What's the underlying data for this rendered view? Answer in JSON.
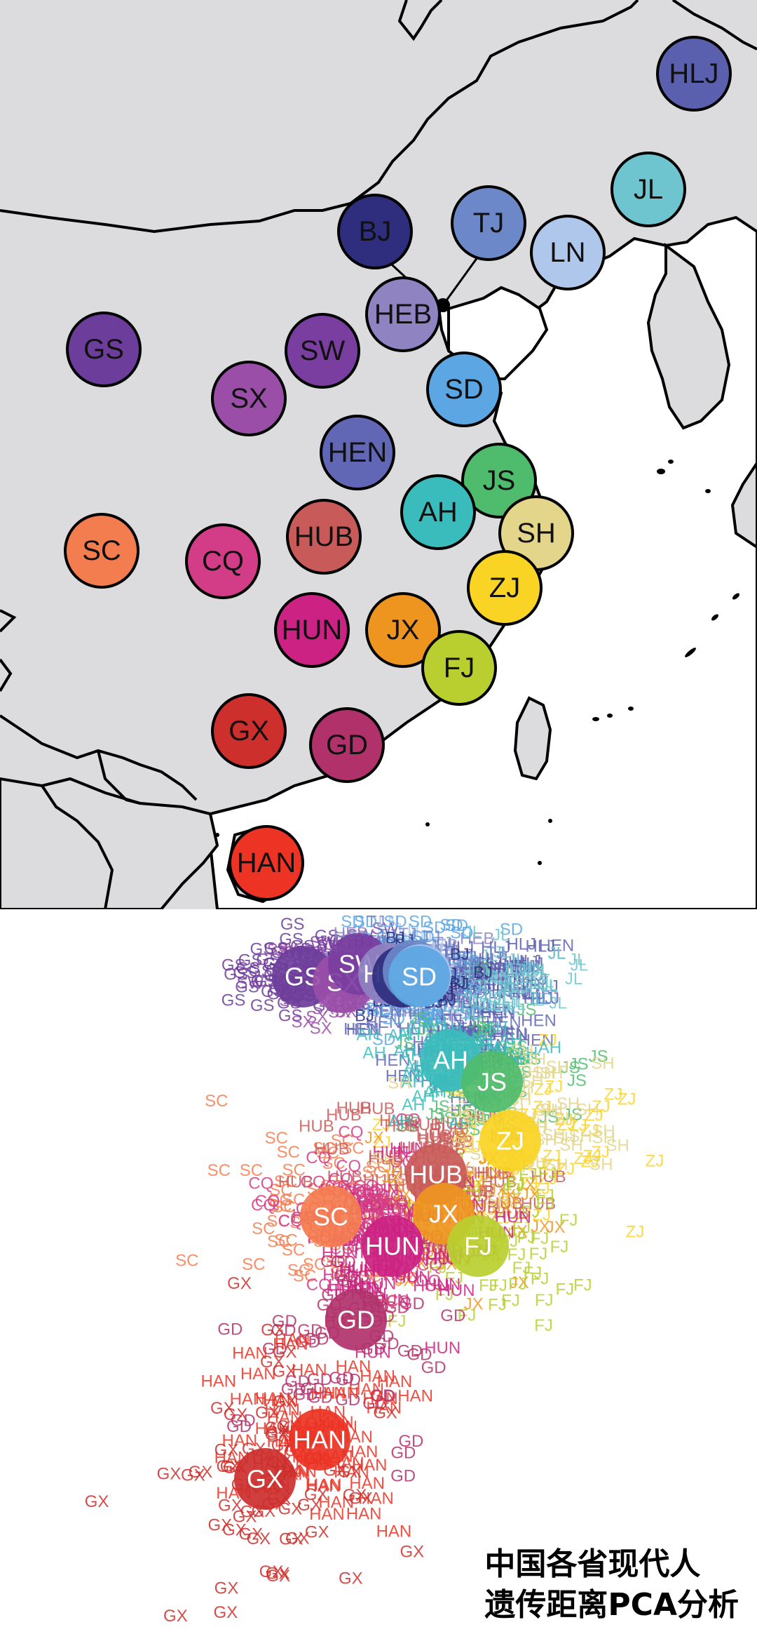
{
  "map": {
    "land_color": "#dcdcde",
    "sea_color": "#ffffff",
    "border_color": "#000000",
    "provinces": [
      {
        "code": "HLJ",
        "color": "#5a5fae"
      },
      {
        "code": "JL",
        "color": "#6ec5cf"
      },
      {
        "code": "LN",
        "color": "#aec7ea"
      },
      {
        "code": "TJ",
        "color": "#6c88c8"
      },
      {
        "code": "BJ",
        "color": "#2e2d7e"
      },
      {
        "code": "HEB",
        "color": "#8f83c2"
      },
      {
        "code": "GS",
        "color": "#6c3d9a"
      },
      {
        "code": "SW",
        "color": "#7a3ea0"
      },
      {
        "code": "SX",
        "color": "#9a4ea8"
      },
      {
        "code": "SD",
        "color": "#5ba6e3"
      },
      {
        "code": "HEN",
        "color": "#6166b5"
      },
      {
        "code": "JS",
        "color": "#4fbc6d"
      },
      {
        "code": "AH",
        "color": "#3bbcbc"
      },
      {
        "code": "SH",
        "color": "#e3d58a"
      },
      {
        "code": "SC",
        "color": "#f47d50"
      },
      {
        "code": "CQ",
        "color": "#d33d87"
      },
      {
        "code": "HUB",
        "color": "#c95a5a"
      },
      {
        "code": "ZJ",
        "color": "#fad424"
      },
      {
        "code": "JX",
        "color": "#ee951f"
      },
      {
        "code": "HUN",
        "color": "#cc2283"
      },
      {
        "code": "FJ",
        "color": "#b8cf2f"
      },
      {
        "code": "GX",
        "color": "#cc2f2c"
      },
      {
        "code": "GD",
        "color": "#b1326b"
      },
      {
        "code": "HAN",
        "color": "#ec3324"
      }
    ]
  },
  "pca": {
    "centroids": [
      "GS",
      "SX",
      "SW",
      "HEB",
      "BJ",
      "TJ",
      "LN",
      "SD",
      "AH",
      "JS",
      "ZJ",
      "HUB",
      "JX",
      "SC",
      "HUN",
      "FJ",
      "GD",
      "HAN",
      "GX"
    ],
    "scatter_labels": [
      "GS",
      "SX",
      "SW",
      "HEB",
      "LN",
      "HEN",
      "HLJ",
      "SC",
      "SD",
      "ZJ",
      "JS",
      "HUB",
      "JX",
      "FJ",
      "GD",
      "HAN",
      "GX",
      "JL",
      "TJ",
      "BJ",
      "HUN",
      "CQ",
      "AH",
      "SH"
    ]
  },
  "caption": {
    "line1": "中国各省现代人",
    "line2": "遗传距离PCA分析"
  }
}
